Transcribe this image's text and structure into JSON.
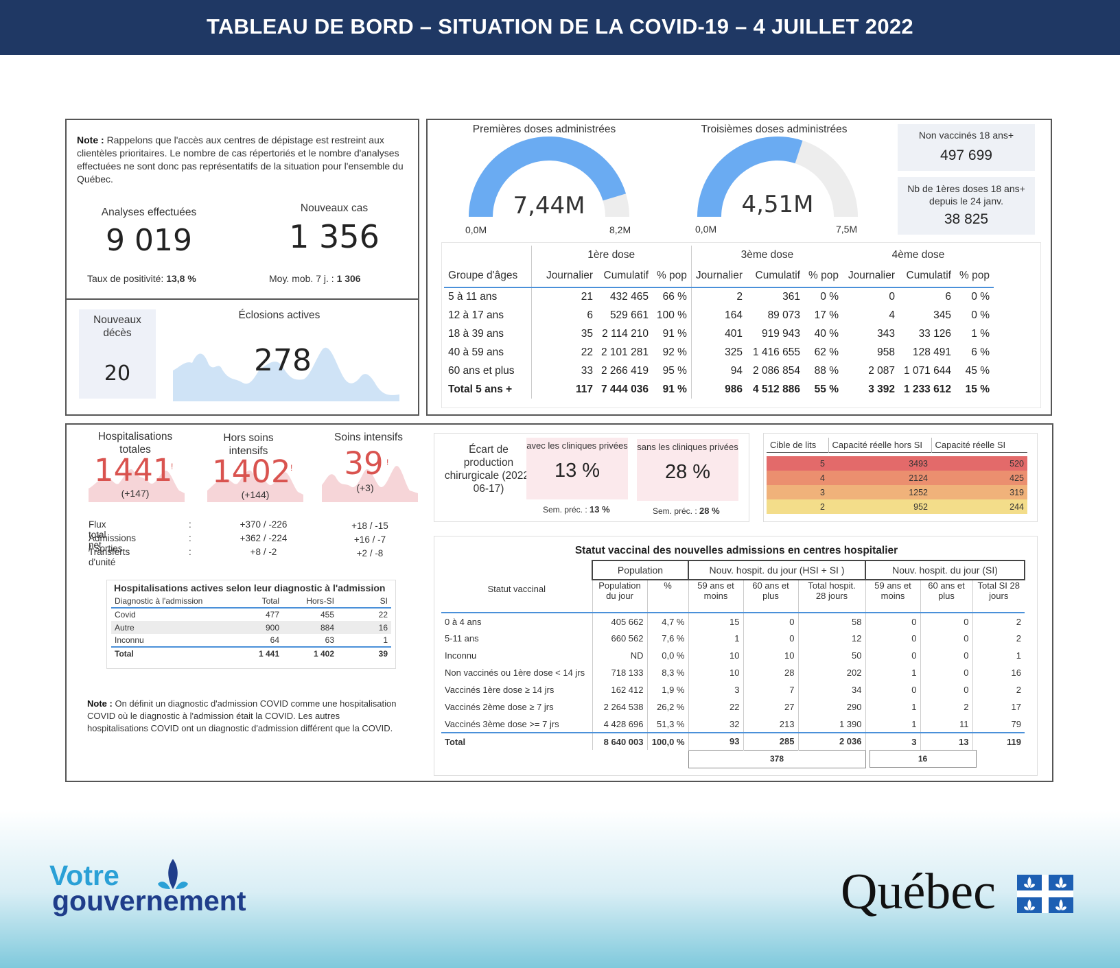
{
  "header": {
    "title": "TABLEAU DE BORD – SITUATION DE LA COVID-19 – 4 JUILLET 2022"
  },
  "testing": {
    "note_label": "Note :",
    "note_text": "Rappelons que l'accès aux centres de dépistage est restreint aux clientèles prioritaires. Le nombre de cas répertoriés et le nombre d'analyses effectuées ne sont donc pas représentatifs de la situation pour l'ensemble du Québec.",
    "analyses_label": "Analyses effectuées",
    "analyses_value": "9 019",
    "positivity_label": "Taux de positivité:",
    "positivity_value": "13,8 %",
    "cases_label": "Nouveaux cas",
    "cases_value": "1 356",
    "mobile_avg_label": "Moy. mob. 7 j. :",
    "mobile_avg_value": "1 306",
    "deaths_label": "Nouveaux décès",
    "deaths_value": "20",
    "outbreaks_label": "Éclosions actives",
    "outbreaks_value": "278"
  },
  "vaccination": {
    "gauge1": {
      "title": "Premières doses administrées",
      "value": "7,44M",
      "min": "0,0M",
      "max": "8,2M",
      "fraction": 0.907
    },
    "gauge2": {
      "title": "Troisièmes doses administrées",
      "value": "4,51M",
      "min": "0,0M",
      "max": "7,5M",
      "fraction": 0.601
    },
    "unvaccinated": {
      "label": "Non vaccinés 18 ans+",
      "value": "497 699"
    },
    "first_doses_since": {
      "label": "Nb de 1ères doses 18 ans+ depuis le 24 janv.",
      "value": "38 825"
    },
    "table": {
      "groups": [
        "1ère dose",
        "3ème dose",
        "4ème dose"
      ],
      "headers": [
        "Groupe d'âges",
        "Journalier",
        "Cumulatif",
        "% pop",
        "Journalier",
        "Cumulatif",
        "% pop",
        "Journalier",
        "Cumulatif",
        "% pop"
      ],
      "rows": [
        [
          "5 à 11 ans",
          "21",
          "432 465",
          "66 %",
          "2",
          "361",
          "0 %",
          "0",
          "6",
          "0 %"
        ],
        [
          "12 à 17 ans",
          "6",
          "529 661",
          "100 %",
          "164",
          "89 073",
          "17 %",
          "4",
          "345",
          "0 %"
        ],
        [
          "18 à 39 ans",
          "35",
          "2 114 210",
          "91 %",
          "401",
          "919 943",
          "40 %",
          "343",
          "33 126",
          "1 %"
        ],
        [
          "40 à 59 ans",
          "22",
          "2 101 281",
          "92 %",
          "325",
          "1 416 655",
          "62 %",
          "958",
          "128 491",
          "6 %"
        ],
        [
          "60 ans et plus",
          "33",
          "2 266 419",
          "95 %",
          "94",
          "2 086 854",
          "88 %",
          "2 087",
          "1 071 644",
          "45 %"
        ]
      ],
      "total": [
        "Total 5 ans +",
        "117",
        "7 444 036",
        "91 %",
        "986",
        "4 512 886",
        "55 %",
        "3 392",
        "1 233 612",
        "15 %"
      ]
    }
  },
  "hospital": {
    "kpis": [
      {
        "label": "Hospitalisations totales",
        "value": "1441",
        "delta": "(+147)"
      },
      {
        "label": "Hors soins intensifs",
        "value": "1402",
        "delta": "(+144)"
      },
      {
        "label": "Soins intensifs",
        "value": "39",
        "delta": "(+3)"
      }
    ],
    "flux": [
      {
        "label": "Flux total net",
        "a": "+370 / -226",
        "b": "+18 / -15"
      },
      {
        "label": "Admissions / Sorties",
        "a": "+362 / -224",
        "b": "+16 / -7"
      },
      {
        "label": "Transferts d'unité",
        "a": "+8 / -2",
        "b": "+2 / -8"
      }
    ],
    "diag_table": {
      "title": "Hospitalisations actives selon leur diagnostic à l'admission",
      "headers": [
        "Diagnostic à l'admission",
        "Total",
        "Hors-SI",
        "SI"
      ],
      "rows": [
        [
          "Covid",
          "477",
          "455",
          "22"
        ],
        [
          "Autre",
          "900",
          "884",
          "16"
        ],
        [
          "Inconnu",
          "64",
          "63",
          "1"
        ]
      ],
      "total": [
        "Total",
        "1 441",
        "1 402",
        "39"
      ]
    },
    "note_label": "Note :",
    "note_text": "On définit un diagnostic d'admission COVID comme une hospitalisation COVID où le diagnostic à l'admission était la COVID. Les autres hospitalisations COVID ont un diagnostic d'admission différent que la COVID."
  },
  "surgery": {
    "label": "Écart de production chirurgicale (2022-06-17)",
    "with_private": {
      "label": "avec les cliniques privées",
      "value": "13 %",
      "prev_label": "Sem. préc. :",
      "prev": "13 %"
    },
    "without_private": {
      "label": "sans les cliniques privées",
      "value": "28 %",
      "prev_label": "Sem. préc. :",
      "prev": "28 %"
    }
  },
  "beds": {
    "headers": [
      "Cible de lits",
      "Capacité réelle hors SI",
      "Capacité réelle SI"
    ],
    "rows": [
      {
        "level": "5",
        "hors": "3493",
        "si": "520",
        "color": "#e36a6a"
      },
      {
        "level": "4",
        "hors": "2124",
        "si": "425",
        "color": "#eb8f6f"
      },
      {
        "level": "3",
        "hors": "1252",
        "si": "319",
        "color": "#f0b27a"
      },
      {
        "level": "2",
        "hors": "952",
        "si": "244",
        "color": "#f3dd8a"
      }
    ]
  },
  "status": {
    "title": "Statut vaccinal des nouvelles admissions en centres hospitalier",
    "group_headers": [
      "Population",
      "Nouv. hospit. du jour (HSI + SI )",
      "Nouv. hospit. du jour (SI)"
    ],
    "headers": [
      "Statut vaccinal",
      "Population du jour",
      "%",
      "59 ans et moins",
      "60 ans et plus",
      "Total hospit. 28 jours",
      "59 ans et moins",
      "60 ans et plus",
      "Total SI 28 jours"
    ],
    "rows": [
      [
        "0 à 4 ans",
        "405 662",
        "4,7 %",
        "15",
        "0",
        "58",
        "0",
        "0",
        "2"
      ],
      [
        "5-11 ans",
        "660 562",
        "7,6 %",
        "1",
        "0",
        "12",
        "0",
        "0",
        "2"
      ],
      [
        "Inconnu",
        "ND",
        "0,0 %",
        "10",
        "10",
        "50",
        "0",
        "0",
        "1"
      ],
      [
        "Non vaccinés ou 1ère dose < 14 jrs",
        "718 133",
        "8,3 %",
        "10",
        "28",
        "202",
        "1",
        "0",
        "16"
      ],
      [
        "Vaccinés 1ère dose ≥ 14 jrs",
        "162 412",
        "1,9 %",
        "3",
        "7",
        "34",
        "0",
        "0",
        "2"
      ],
      [
        "Vaccinés 2ème dose ≥ 7 jrs",
        "2 264 538",
        "26,2 %",
        "22",
        "27",
        "290",
        "1",
        "2",
        "17"
      ],
      [
        "Vaccinés 3ème dose >= 7 jrs",
        "4 428 696",
        "51,3 %",
        "32",
        "213",
        "1 390",
        "1",
        "11",
        "79"
      ]
    ],
    "total": [
      "Total",
      "8 640 003",
      "100,0 %",
      "93",
      "285",
      "2 036",
      "3",
      "13",
      "119"
    ],
    "sum_hsi": "378",
    "sum_si": "16"
  },
  "footer": {
    "left_logo_line1": "Votre",
    "left_logo_line2": "gouvernement",
    "right_logo": "Québec"
  }
}
